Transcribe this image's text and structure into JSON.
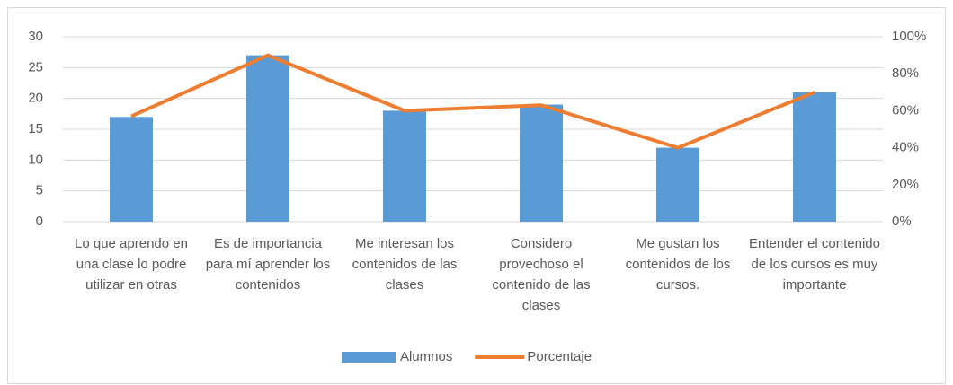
{
  "chart_data": {
    "type": "bar_line",
    "categories": [
      "Lo que aprendo en una clase lo podre utilizar en otras",
      "Es de importancia para mí aprender los contenidos",
      "Me interesan los contenidos de las clases",
      "Considero provechoso el contenido de las clases",
      "Me gustan los contenidos de los cursos.",
      "Entender el contenido de los cursos es muy importante"
    ],
    "series": [
      {
        "name": "Alumnos",
        "type": "bar",
        "color": "#5b9bd5",
        "values": [
          17,
          27,
          18,
          19,
          12,
          21
        ]
      },
      {
        "name": "Porcentaje",
        "type": "line",
        "color": "#ed7d31",
        "axis": "y2",
        "values": [
          57,
          90,
          60,
          63,
          40,
          70
        ]
      }
    ],
    "ylim": [
      0,
      30
    ],
    "yticks": [
      0,
      5,
      10,
      15,
      20,
      25,
      30
    ],
    "y2lim": [
      0,
      100
    ],
    "y2ticks": [
      {
        "value": 0,
        "label": "0%"
      },
      {
        "value": 20,
        "label": "20%"
      },
      {
        "value": 40,
        "label": "40%"
      },
      {
        "value": 60,
        "label": "60%"
      },
      {
        "value": 80,
        "label": "80%"
      },
      {
        "value": 100,
        "label": "100%"
      }
    ],
    "grid": true,
    "legend": "bottom"
  }
}
